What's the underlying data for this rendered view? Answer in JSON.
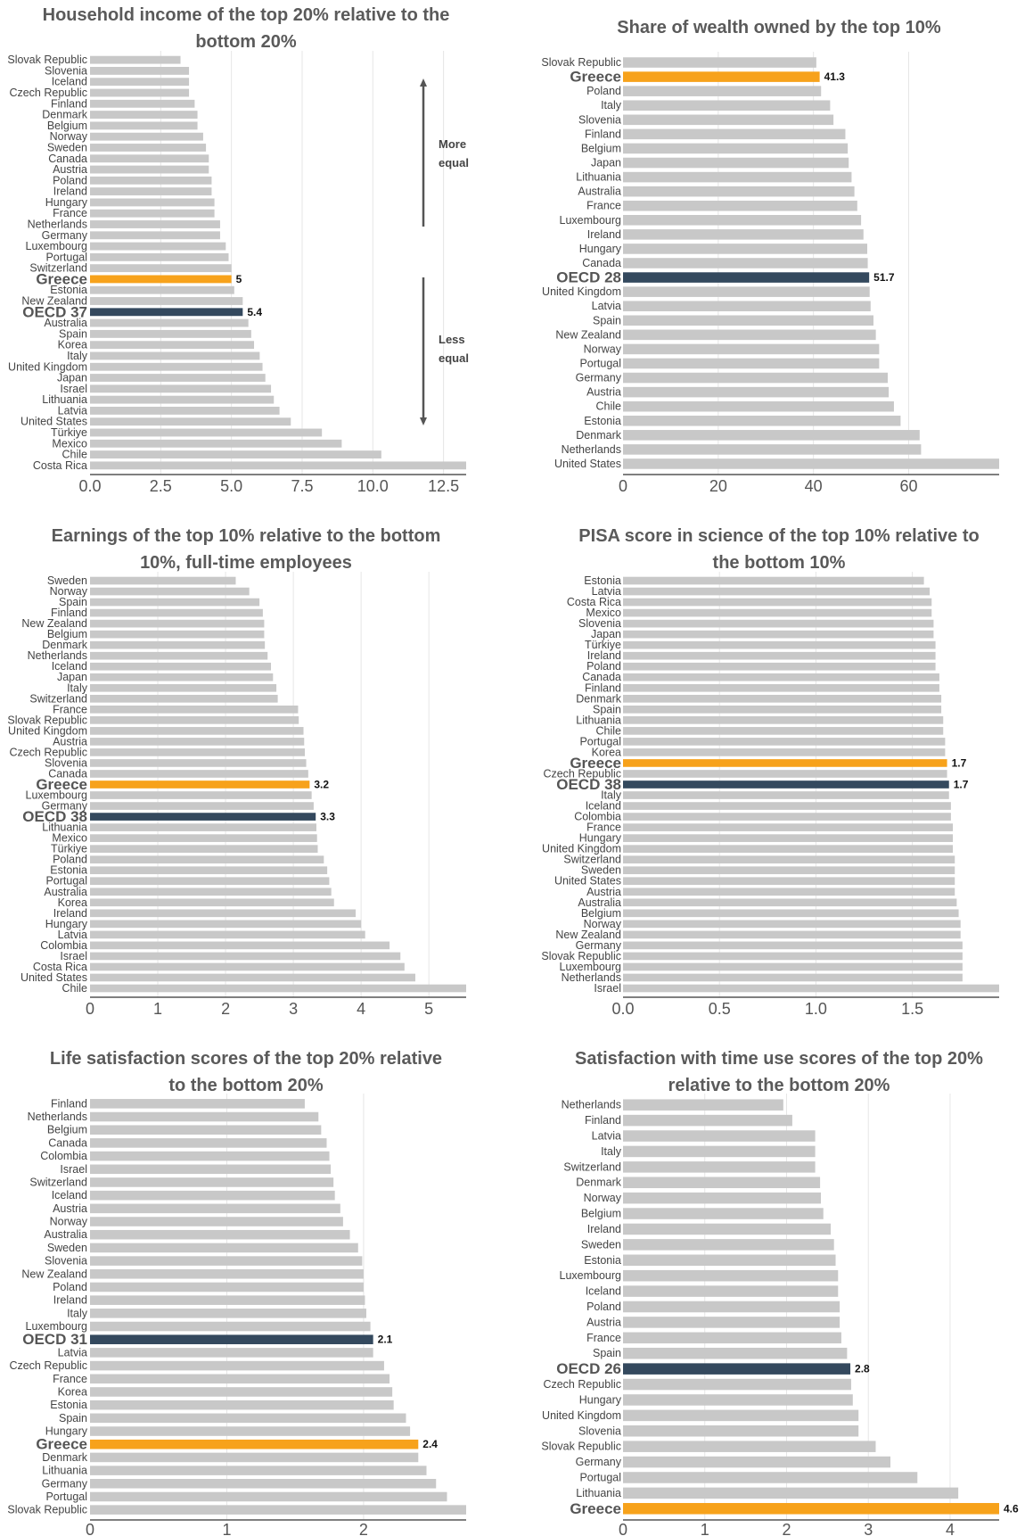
{
  "colors": {
    "bar": "#c8c8c8",
    "greece": "#f7a21b",
    "oecd": "#34495e",
    "grid": "#e6e6e6",
    "axis": "#555555"
  },
  "chart_data": [
    {
      "type": "bar",
      "orientation": "horizontal",
      "title": "Household income of the top 20% relative to the bottom 20%",
      "xlim": [
        0,
        13.3
      ],
      "xticks": [
        0,
        2.5,
        5,
        7.5,
        10,
        12.5
      ],
      "xtick_labels": [
        "0.0",
        "2.5",
        "5.0",
        "7.5",
        "10.0",
        "12.5"
      ],
      "annotations": {
        "more_equal": "More equal",
        "less_equal": "Less equal"
      },
      "categories": [
        "Slovak Republic",
        "Slovenia",
        "Iceland",
        "Czech Republic",
        "Finland",
        "Denmark",
        "Belgium",
        "Norway",
        "Sweden",
        "Canada",
        "Austria",
        "Poland",
        "Ireland",
        "Hungary",
        "France",
        "Netherlands",
        "Germany",
        "Luxembourg",
        "Portugal",
        "Switzerland",
        "Greece",
        "Estonia",
        "New Zealand",
        "OECD 37",
        "Australia",
        "Spain",
        "Korea",
        "Italy",
        "United Kingdom",
        "Japan",
        "Israel",
        "Lithuania",
        "Latvia",
        "United States",
        "Türkiye",
        "Mexico",
        "Chile",
        "Costa Rica"
      ],
      "values": [
        3.2,
        3.5,
        3.5,
        3.5,
        3.7,
        3.8,
        3.8,
        4.0,
        4.1,
        4.2,
        4.2,
        4.3,
        4.3,
        4.4,
        4.4,
        4.6,
        4.6,
        4.8,
        4.9,
        5.0,
        5.0,
        5.1,
        5.4,
        5.4,
        5.6,
        5.7,
        5.8,
        6.0,
        6.1,
        6.2,
        6.4,
        6.5,
        6.7,
        7.1,
        8.2,
        8.9,
        10.3,
        13.3
      ],
      "highlight": {
        "greece": 20,
        "oecd": 23
      },
      "value_labels": {
        "20": "5",
        "23": "5.4"
      }
    },
    {
      "type": "bar",
      "orientation": "horizontal",
      "title": "Share of wealth owned by the top 10%",
      "xlim": [
        0,
        79
      ],
      "xticks": [
        0,
        20,
        40,
        60
      ],
      "xtick_labels": [
        "0",
        "20",
        "40",
        "60"
      ],
      "categories": [
        "Slovak Republic",
        "Greece",
        "Poland",
        "Italy",
        "Slovenia",
        "Finland",
        "Belgium",
        "Japan",
        "Lithuania",
        "Australia",
        "France",
        "Luxembourg",
        "Ireland",
        "Hungary",
        "Canada",
        "OECD 28",
        "United Kingdom",
        "Latvia",
        "Spain",
        "New Zealand",
        "Norway",
        "Portugal",
        "Germany",
        "Austria",
        "Chile",
        "Estonia",
        "Denmark",
        "Netherlands",
        "United States"
      ],
      "values": [
        40.6,
        41.3,
        41.6,
        43.5,
        44.2,
        46.7,
        47.2,
        47.4,
        48.0,
        48.6,
        49.2,
        50.0,
        50.5,
        51.3,
        51.4,
        51.7,
        51.8,
        52.0,
        52.6,
        53.1,
        53.8,
        53.8,
        55.6,
        55.8,
        56.9,
        58.3,
        62.3,
        62.6,
        79.0
      ],
      "highlight": {
        "greece": 1,
        "oecd": 15
      },
      "value_labels": {
        "1": "41.3",
        "15": "51.7"
      }
    },
    {
      "type": "bar",
      "orientation": "horizontal",
      "title": "Earnings of the top 10% relative to the bottom 10%, full-time employees",
      "xlim": [
        0,
        5.55
      ],
      "xticks": [
        0,
        1,
        2,
        3,
        4,
        5
      ],
      "xtick_labels": [
        "0",
        "1",
        "2",
        "3",
        "4",
        "5"
      ],
      "categories": [
        "Sweden",
        "Norway",
        "Spain",
        "Finland",
        "New Zealand",
        "Belgium",
        "Denmark",
        "Netherlands",
        "Iceland",
        "Japan",
        "Italy",
        "Switzerland",
        "France",
        "Slovak Republic",
        "United Kingdom",
        "Austria",
        "Czech Republic",
        "Slovenia",
        "Canada",
        "Greece",
        "Luxembourg",
        "Germany",
        "OECD 38",
        "Lithuania",
        "Mexico",
        "Türkiye",
        "Poland",
        "Estonia",
        "Portugal",
        "Australia",
        "Korea",
        "Ireland",
        "Hungary",
        "Latvia",
        "Colombia",
        "Israel",
        "Costa Rica",
        "United States",
        "Chile"
      ],
      "values": [
        2.15,
        2.35,
        2.5,
        2.55,
        2.57,
        2.57,
        2.58,
        2.62,
        2.67,
        2.7,
        2.75,
        2.77,
        3.07,
        3.08,
        3.15,
        3.16,
        3.17,
        3.19,
        3.22,
        3.24,
        3.27,
        3.3,
        3.33,
        3.34,
        3.35,
        3.36,
        3.45,
        3.5,
        3.53,
        3.56,
        3.6,
        3.92,
        4.0,
        4.06,
        4.42,
        4.58,
        4.64,
        4.8,
        5.55
      ],
      "highlight": {
        "greece": 19,
        "oecd": 22
      },
      "value_labels": {
        "19": "3.2",
        "22": "3.3"
      }
    },
    {
      "type": "bar",
      "orientation": "horizontal",
      "title": "PISA score in science of the top 10% relative to the bottom 10%",
      "xlim": [
        0,
        1.95
      ],
      "xticks": [
        0,
        0.5,
        1.0,
        1.5
      ],
      "xtick_labels": [
        "0.0",
        "0.5",
        "1.0",
        "1.5"
      ],
      "categories": [
        "Estonia",
        "Latvia",
        "Costa Rica",
        "Mexico",
        "Slovenia",
        "Japan",
        "Türkiye",
        "Ireland",
        "Poland",
        "Canada",
        "Finland",
        "Denmark",
        "Spain",
        "Lithuania",
        "Chile",
        "Portugal",
        "Korea",
        "Greece",
        "Czech Republic",
        "OECD 38",
        "Italy",
        "Iceland",
        "Colombia",
        "France",
        "Hungary",
        "United Kingdom",
        "Switzerland",
        "Sweden",
        "United States",
        "Austria",
        "Australia",
        "Belgium",
        "Norway",
        "New Zealand",
        "Germany",
        "Slovak Republic",
        "Luxembourg",
        "Netherlands",
        "Israel"
      ],
      "values": [
        1.56,
        1.59,
        1.6,
        1.6,
        1.61,
        1.61,
        1.62,
        1.62,
        1.62,
        1.64,
        1.64,
        1.65,
        1.65,
        1.66,
        1.66,
        1.67,
        1.67,
        1.68,
        1.68,
        1.69,
        1.69,
        1.7,
        1.7,
        1.71,
        1.71,
        1.71,
        1.72,
        1.72,
        1.72,
        1.72,
        1.73,
        1.74,
        1.75,
        1.75,
        1.76,
        1.76,
        1.76,
        1.76,
        1.95
      ],
      "highlight": {
        "greece": 17,
        "oecd": 19
      },
      "value_labels": {
        "17": "1.7",
        "19": "1.7"
      }
    },
    {
      "type": "bar",
      "orientation": "horizontal",
      "title": "Life satisfaction scores of the top 20% relative to the bottom 20%",
      "xlim": [
        0,
        2.75
      ],
      "xticks": [
        0,
        1,
        2
      ],
      "xtick_labels": [
        "0",
        "1",
        "2"
      ],
      "categories": [
        "Finland",
        "Netherlands",
        "Belgium",
        "Canada",
        "Colombia",
        "Israel",
        "Switzerland",
        "Iceland",
        "Austria",
        "Norway",
        "Australia",
        "Sweden",
        "Slovenia",
        "New Zealand",
        "Poland",
        "Ireland",
        "Italy",
        "Luxembourg",
        "OECD 31",
        "Latvia",
        "Czech Republic",
        "France",
        "Korea",
        "Estonia",
        "Spain",
        "Hungary",
        "Greece",
        "Denmark",
        "Lithuania",
        "Germany",
        "Portugal",
        "Slovak Republic"
      ],
      "values": [
        1.57,
        1.67,
        1.69,
        1.73,
        1.75,
        1.76,
        1.78,
        1.79,
        1.83,
        1.85,
        1.9,
        1.96,
        1.99,
        2.0,
        2.0,
        2.01,
        2.02,
        2.05,
        2.07,
        2.07,
        2.15,
        2.19,
        2.21,
        2.22,
        2.31,
        2.34,
        2.4,
        2.4,
        2.46,
        2.53,
        2.61,
        2.75
      ],
      "highlight": {
        "greece": 26,
        "oecd": 18
      },
      "value_labels": {
        "26": "2.4",
        "18": "2.1"
      }
    },
    {
      "type": "bar",
      "orientation": "horizontal",
      "title": "Satisfaction with time use scores of the top 20% relative to the bottom 20%",
      "xlim": [
        0,
        4.6
      ],
      "xticks": [
        0,
        1,
        2,
        3,
        4
      ],
      "xtick_labels": [
        "0",
        "1",
        "2",
        "3",
        "4"
      ],
      "categories": [
        "Netherlands",
        "Finland",
        "Latvia",
        "Italy",
        "Switzerland",
        "Denmark",
        "Norway",
        "Belgium",
        "Ireland",
        "Sweden",
        "Estonia",
        "Luxembourg",
        "Iceland",
        "Poland",
        "Austria",
        "France",
        "Spain",
        "OECD 26",
        "Czech Republic",
        "Hungary",
        "United Kingdom",
        "Slovenia",
        "Slovak Republic",
        "Germany",
        "Portugal",
        "Lithuania",
        "Greece"
      ],
      "values": [
        1.96,
        2.07,
        2.35,
        2.35,
        2.35,
        2.41,
        2.42,
        2.45,
        2.54,
        2.58,
        2.6,
        2.63,
        2.63,
        2.65,
        2.65,
        2.67,
        2.74,
        2.78,
        2.79,
        2.81,
        2.88,
        2.88,
        3.09,
        3.27,
        3.6,
        4.1,
        4.6
      ],
      "highlight": {
        "greece": 26,
        "oecd": 17
      },
      "value_labels": {
        "26": "4.6",
        "17": "2.8"
      }
    }
  ]
}
